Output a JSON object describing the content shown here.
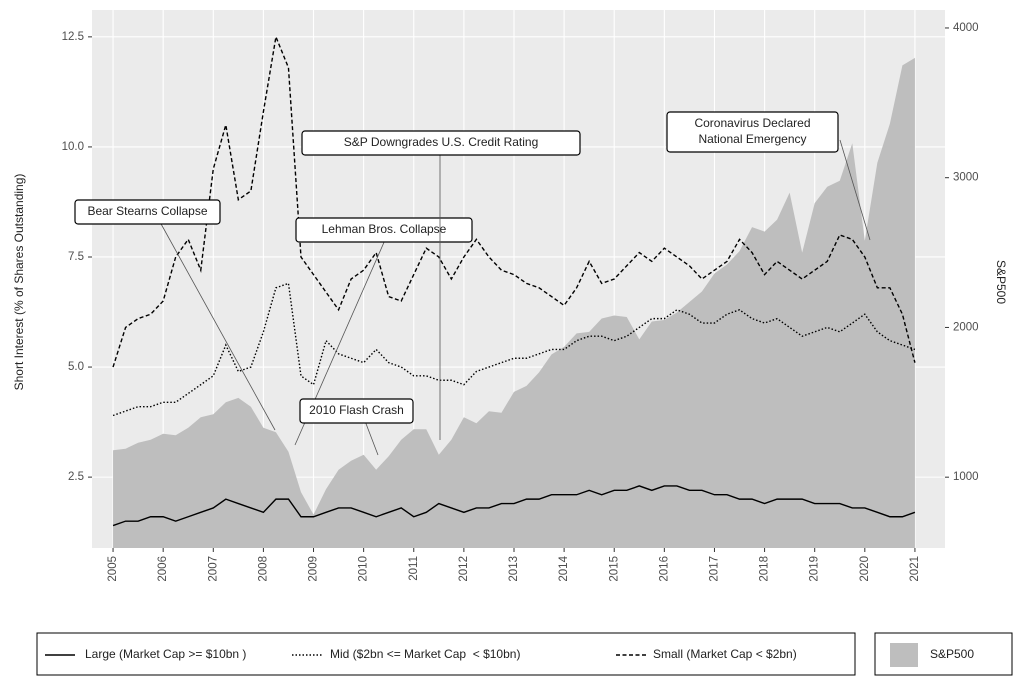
{
  "chart_data": {
    "type": "line",
    "y_label": "Short Interest (% of Shares Outstanding)",
    "y2_label": "S&P500",
    "x": [
      2005,
      2005.25,
      2005.5,
      2005.75,
      2006,
      2006.25,
      2006.5,
      2006.75,
      2007,
      2007.25,
      2007.5,
      2007.75,
      2008,
      2008.25,
      2008.5,
      2008.75,
      2009,
      2009.25,
      2009.5,
      2009.75,
      2010,
      2010.25,
      2010.5,
      2010.75,
      2011,
      2011.25,
      2011.5,
      2011.75,
      2012,
      2012.25,
      2012.5,
      2012.75,
      2013,
      2013.25,
      2013.5,
      2013.75,
      2014,
      2014.25,
      2014.5,
      2014.75,
      2015,
      2015.25,
      2015.5,
      2015.75,
      2016,
      2016.25,
      2016.5,
      2016.75,
      2017,
      2017.25,
      2017.5,
      2017.75,
      2018,
      2018.25,
      2018.5,
      2018.75,
      2019,
      2019.25,
      2019.5,
      2019.75,
      2020,
      2020.25,
      2020.5,
      2020.75,
      2021
    ],
    "series": [
      {
        "name": "Large (Market Cap >= $10bn )",
        "color": "#000000",
        "line_style": "solid",
        "values": [
          1.4,
          1.5,
          1.5,
          1.6,
          1.6,
          1.5,
          1.6,
          1.7,
          1.8,
          2.0,
          1.9,
          1.8,
          1.7,
          2.0,
          2.0,
          1.6,
          1.6,
          1.7,
          1.8,
          1.8,
          1.7,
          1.6,
          1.7,
          1.8,
          1.6,
          1.7,
          1.9,
          1.8,
          1.7,
          1.8,
          1.8,
          1.9,
          1.9,
          2.0,
          2.0,
          2.1,
          2.1,
          2.1,
          2.2,
          2.1,
          2.2,
          2.2,
          2.3,
          2.2,
          2.3,
          2.3,
          2.2,
          2.2,
          2.1,
          2.1,
          2.0,
          2.0,
          1.9,
          2.0,
          2.0,
          2.0,
          1.9,
          1.9,
          1.9,
          1.8,
          1.8,
          1.7,
          1.6,
          1.6,
          1.7
        ]
      },
      {
        "name": "Mid ($2bn <= Market Cap  < $10bn)",
        "color": "#000000",
        "line_style": "dotted",
        "values": [
          3.9,
          4.0,
          4.1,
          4.1,
          4.2,
          4.2,
          4.4,
          4.6,
          4.8,
          5.5,
          4.9,
          5.0,
          5.8,
          6.8,
          6.9,
          4.8,
          4.6,
          5.6,
          5.3,
          5.2,
          5.1,
          5.4,
          5.1,
          5.0,
          4.8,
          4.8,
          4.7,
          4.7,
          4.6,
          4.9,
          5.0,
          5.1,
          5.2,
          5.2,
          5.3,
          5.4,
          5.4,
          5.6,
          5.7,
          5.7,
          5.6,
          5.7,
          5.9,
          6.1,
          6.1,
          6.3,
          6.2,
          6.0,
          6.0,
          6.2,
          6.3,
          6.1,
          6.0,
          6.1,
          5.9,
          5.7,
          5.8,
          5.9,
          5.8,
          6.0,
          6.2,
          5.8,
          5.6,
          5.5,
          5.4
        ]
      },
      {
        "name": "Small (Market Cap < $2bn)",
        "color": "#000000",
        "line_style": "dashed",
        "values": [
          5.0,
          5.9,
          6.1,
          6.2,
          6.5,
          7.5,
          7.9,
          7.2,
          9.5,
          10.5,
          8.8,
          9.0,
          10.8,
          12.5,
          11.8,
          7.5,
          7.1,
          6.7,
          6.3,
          7.0,
          7.2,
          7.6,
          6.6,
          6.5,
          7.1,
          7.7,
          7.5,
          7.0,
          7.5,
          7.9,
          7.5,
          7.2,
          7.1,
          6.9,
          6.8,
          6.6,
          6.4,
          6.8,
          7.4,
          6.9,
          7.0,
          7.3,
          7.6,
          7.4,
          7.7,
          7.5,
          7.3,
          7.0,
          7.2,
          7.4,
          7.9,
          7.6,
          7.1,
          7.4,
          7.2,
          7.0,
          7.2,
          7.4,
          8.0,
          7.9,
          7.5,
          6.8,
          6.8,
          6.2,
          5.1
        ]
      },
      {
        "name": "S&P500",
        "color": "#bebebe",
        "kind": "area",
        "axis": "y2",
        "values": [
          1180,
          1190,
          1230,
          1250,
          1290,
          1280,
          1330,
          1400,
          1420,
          1500,
          1530,
          1470,
          1330,
          1300,
          1170,
          900,
          750,
          920,
          1050,
          1110,
          1150,
          1050,
          1140,
          1250,
          1320,
          1320,
          1150,
          1250,
          1400,
          1360,
          1440,
          1430,
          1570,
          1610,
          1700,
          1820,
          1870,
          1960,
          1970,
          2060,
          2080,
          2070,
          1920,
          2040,
          2050,
          2100,
          2170,
          2240,
          2360,
          2420,
          2510,
          2670,
          2640,
          2720,
          2900,
          2500,
          2830,
          2940,
          2980,
          3230,
          2580,
          3100,
          3360,
          3750,
          3800
        ]
      }
    ],
    "xlim": [
      2004.58,
      2021.6
    ],
    "xticks": [
      2005,
      2006,
      2007,
      2008,
      2009,
      2010,
      2011,
      2012,
      2013,
      2014,
      2015,
      2016,
      2017,
      2018,
      2019,
      2020,
      2021
    ],
    "ylim": [
      0.89,
      13.11
    ],
    "yticks": [
      2.5,
      {
        "value": 5,
        "label": "5.0"
      },
      7.5,
      {
        "value": 10,
        "label": "10.0"
      },
      12.5
    ],
    "y2lim": [
      527,
      4120
    ],
    "y2ticks": [
      1000,
      2000,
      3000,
      4000
    ],
    "grid": true,
    "annotations": [
      {
        "text": [
          "Bear Stearns Collapse"
        ]
      },
      {
        "text": [
          "Lehman Bros. Collapse"
        ]
      },
      {
        "text": [
          "S&P Downgrades U.S. Credit Rating"
        ]
      },
      {
        "text": [
          "2010 Flash Crash"
        ]
      },
      {
        "text": [
          "Coronavirus Declared",
          "National Emergency"
        ]
      }
    ]
  }
}
